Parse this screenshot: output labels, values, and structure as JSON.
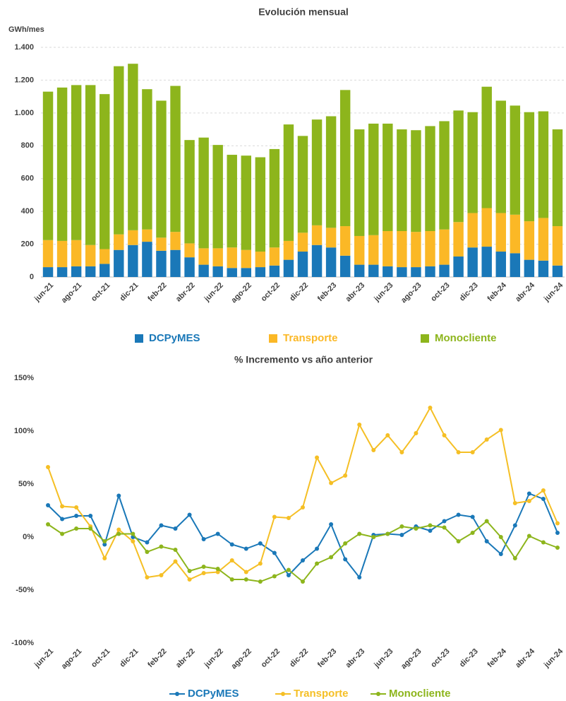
{
  "chart_data": [
    {
      "type": "stacked-bar",
      "title": "Evolución mensual",
      "y_label": "GWh/mes",
      "categories": [
        "jun-21",
        null,
        "ago-21",
        null,
        "oct-21",
        null,
        "dic-21",
        null,
        "feb-22",
        null,
        "abr-22",
        null,
        "jun-22",
        null,
        "ago-22",
        null,
        "oct-22",
        null,
        "dic-22",
        null,
        "feb-23",
        null,
        "abr-23",
        null,
        "jun-23",
        null,
        "ago-23",
        null,
        "oct-23",
        null,
        "dic-23",
        null,
        "feb-24",
        null,
        "abr-24",
        null,
        "jun-24"
      ],
      "series": [
        {
          "name": "DCPyMES",
          "color": "#1a78b8",
          "values": [
            60,
            60,
            65,
            65,
            80,
            165,
            195,
            215,
            160,
            165,
            120,
            75,
            65,
            55,
            55,
            60,
            70,
            105,
            155,
            195,
            180,
            130,
            75,
            75,
            65,
            60,
            60,
            65,
            75,
            125,
            180,
            185,
            155,
            145,
            105,
            100,
            70
          ]
        },
        {
          "name": "Transporte",
          "color": "#fbb826",
          "values": [
            165,
            160,
            160,
            130,
            90,
            95,
            90,
            75,
            80,
            110,
            85,
            100,
            110,
            125,
            110,
            95,
            110,
            115,
            115,
            120,
            120,
            180,
            175,
            180,
            215,
            220,
            215,
            215,
            215,
            210,
            210,
            235,
            235,
            235,
            235,
            260,
            240
          ]
        },
        {
          "name": "Monocliente",
          "color": "#8db51c",
          "values": [
            905,
            935,
            945,
            975,
            945,
            1025,
            1015,
            855,
            835,
            890,
            630,
            675,
            630,
            565,
            575,
            575,
            600,
            710,
            590,
            645,
            680,
            830,
            650,
            680,
            655,
            620,
            620,
            640,
            660,
            680,
            615,
            740,
            685,
            665,
            665,
            650,
            590
          ]
        }
      ],
      "ylim": [
        0,
        1400
      ],
      "yticks": [
        0,
        200,
        400,
        600,
        800,
        {
          "value": 1000,
          "label": "1.000"
        },
        {
          "value": 1200,
          "label": "1.200"
        },
        {
          "value": 1400,
          "label": "1.400"
        }
      ],
      "grid": true,
      "legend": "bottom"
    },
    {
      "type": "line",
      "title": "% Incremento vs año anterior",
      "categories": [
        "jun-21",
        null,
        "ago-21",
        null,
        "oct-21",
        null,
        "dic-21",
        null,
        "feb-22",
        null,
        "abr-22",
        null,
        "jun-22",
        null,
        "ago-22",
        null,
        "oct-22",
        null,
        "dic-22",
        null,
        "feb-23",
        null,
        "abr-23",
        null,
        "jun-23",
        null,
        "ago-23",
        null,
        "oct-23",
        null,
        "dic-23",
        null,
        "feb-24",
        null,
        "abr-24",
        null,
        "jun-24"
      ],
      "series": [
        {
          "name": "DCPyMES",
          "color": "#1a78b8",
          "values": [
            30,
            17,
            20,
            20,
            -7,
            39,
            0,
            -5,
            11,
            8,
            21,
            -2,
            3,
            -7,
            -11,
            -6,
            -15,
            -36,
            -22,
            -11,
            12,
            -21,
            -38,
            2,
            3,
            2,
            10,
            6,
            15,
            21,
            19,
            -4,
            -16,
            11,
            41,
            36,
            4
          ]
        },
        {
          "name": "Transporte",
          "color": "#f5bf25",
          "values": [
            66,
            29,
            28,
            10,
            -20,
            7,
            -4,
            -38,
            -36,
            -23,
            -40,
            -34,
            -33,
            -22,
            -33,
            -25,
            19,
            18,
            28,
            75,
            51,
            58,
            106,
            82,
            96,
            80,
            98,
            122,
            96,
            80,
            80,
            92,
            101,
            32,
            34,
            44,
            13
          ]
        },
        {
          "name": "Monocliente",
          "color": "#8db51c",
          "values": [
            12,
            3,
            8,
            8,
            -4,
            3,
            3,
            -14,
            -9,
            -12,
            -32,
            -28,
            -30,
            -40,
            -40,
            -42,
            -37,
            -31,
            -42,
            -25,
            -19,
            -6,
            3,
            0,
            3,
            10,
            8,
            11,
            9,
            -4,
            4,
            15,
            0,
            -20,
            1,
            -5,
            -10
          ]
        }
      ],
      "ylim": [
        -100,
        150
      ],
      "yticks": [
        {
          "value": -100,
          "label": "-100%"
        },
        {
          "value": -50,
          "label": "-50%"
        },
        {
          "value": 0,
          "label": "0%"
        },
        {
          "value": 50,
          "label": "50%"
        },
        {
          "value": 100,
          "label": "100%"
        },
        {
          "value": 150,
          "label": "150%"
        }
      ],
      "grid": false,
      "legend": "bottom"
    }
  ]
}
